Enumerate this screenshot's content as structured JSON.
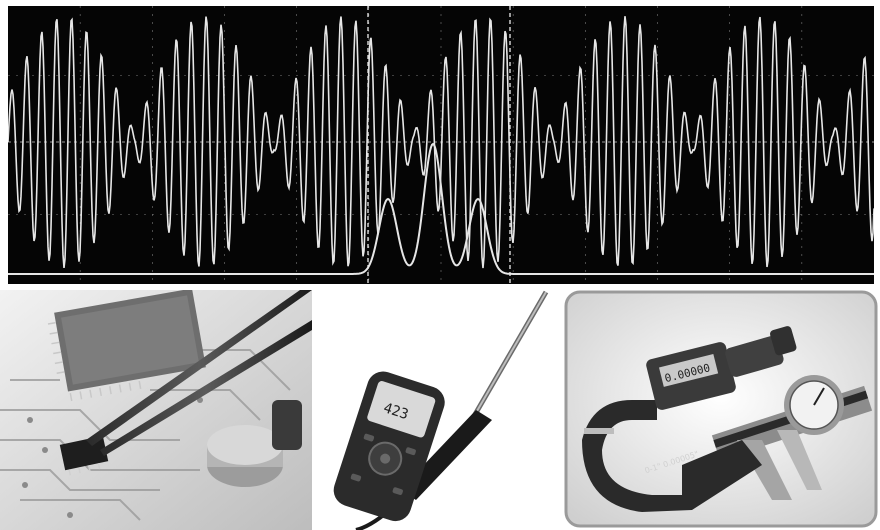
{
  "oscilloscope": {
    "background": "#050505",
    "trace_color": "#e6e6e6",
    "grid_color": "#7a7a7a"
  },
  "photos": {
    "circuit_board": {
      "subject": "tweezers holding a chip on a circuit board"
    },
    "hot_wire_anemometer": {
      "display_readout": "423"
    },
    "micrometer_caliper": {
      "micrometer_display": "0.00000",
      "micrometer_label": "0-1\" 0.00005\""
    }
  }
}
